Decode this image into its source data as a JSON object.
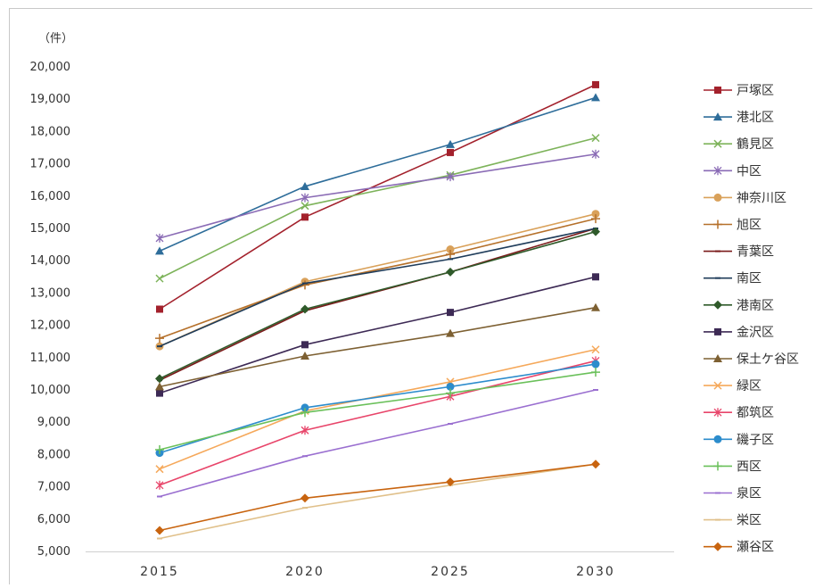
{
  "chart_data": {
    "type": "line",
    "unit_label": "（件）",
    "categories": [
      "2015",
      "2020",
      "2025",
      "2030"
    ],
    "ylim": [
      5000,
      20000
    ],
    "ytick_labels": [
      "5,000",
      "6,000",
      "7,000",
      "8,000",
      "9,000",
      "10,000",
      "11,000",
      "12,000",
      "13,000",
      "14,000",
      "15,000",
      "16,000",
      "17,000",
      "18,000",
      "19,000",
      "20,000"
    ],
    "legend_position": "right",
    "series": [
      {
        "name": "戸塚区",
        "color": "#a3212c",
        "marker": "square",
        "values": [
          12500,
          15350,
          17350,
          19450
        ]
      },
      {
        "name": "港北区",
        "color": "#2e6d9a",
        "marker": "triangle",
        "values": [
          14300,
          16300,
          17600,
          19050
        ]
      },
      {
        "name": "鶴見区",
        "color": "#7db35a",
        "marker": "x",
        "values": [
          13450,
          15700,
          16650,
          17800
        ]
      },
      {
        "name": "中区",
        "color": "#8a6bb5",
        "marker": "star",
        "values": [
          14700,
          15950,
          16600,
          17300
        ]
      },
      {
        "name": "神奈川区",
        "color": "#d9a15a",
        "marker": "circle",
        "values": [
          11350,
          13350,
          14350,
          15450
        ]
      },
      {
        "name": "旭区",
        "color": "#b5702a",
        "marker": "plus",
        "values": [
          11600,
          13250,
          14200,
          15300
        ]
      },
      {
        "name": "青葉区",
        "color": "#7a1a1a",
        "marker": "dash",
        "values": [
          10300,
          12450,
          13650,
          15000
        ]
      },
      {
        "name": "南区",
        "color": "#1f3c5a",
        "marker": "dash",
        "values": [
          11350,
          13300,
          14050,
          15000
        ]
      },
      {
        "name": "港南区",
        "color": "#2f5a2a",
        "marker": "diamond",
        "values": [
          10350,
          12500,
          13650,
          14900
        ]
      },
      {
        "name": "金沢区",
        "color": "#3d2a55",
        "marker": "square",
        "values": [
          9900,
          11400,
          12400,
          13500
        ]
      },
      {
        "name": "保土ケ谷区",
        "color": "#7d6032",
        "marker": "triangle",
        "values": [
          10100,
          11050,
          11750,
          12550
        ]
      },
      {
        "name": "緑区",
        "color": "#f5a85a",
        "marker": "x",
        "values": [
          7550,
          9350,
          10250,
          11250
        ]
      },
      {
        "name": "都筑区",
        "color": "#e8456a",
        "marker": "star",
        "values": [
          7050,
          8750,
          9800,
          10900
        ]
      },
      {
        "name": "磯子区",
        "color": "#2c8ccc",
        "marker": "circle",
        "values": [
          8050,
          9450,
          10100,
          10800
        ]
      },
      {
        "name": "西区",
        "color": "#6ac05a",
        "marker": "plus",
        "values": [
          8150,
          9300,
          9900,
          10550
        ]
      },
      {
        "name": "泉区",
        "color": "#9a6fd0",
        "marker": "dash",
        "values": [
          6700,
          7950,
          8950,
          10000
        ]
      },
      {
        "name": "栄区",
        "color": "#e0c08a",
        "marker": "dash",
        "values": [
          5400,
          6350,
          7050,
          7700
        ]
      },
      {
        "name": "瀬谷区",
        "color": "#c8640f",
        "marker": "diamond",
        "values": [
          5650,
          6650,
          7150,
          7700
        ]
      }
    ]
  }
}
